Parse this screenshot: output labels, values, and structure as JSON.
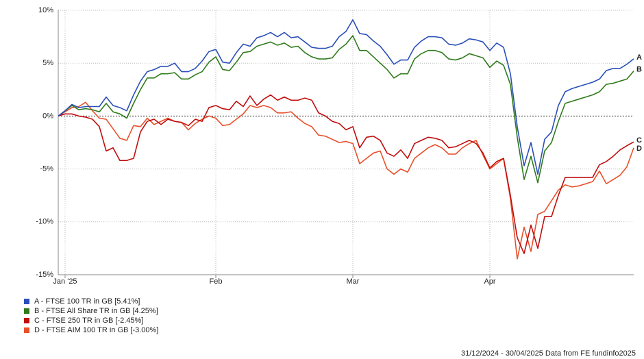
{
  "chart_data": {
    "type": "line",
    "categories": [
      null,
      "Jan '25",
      null,
      null,
      null,
      null,
      null,
      null,
      null,
      null,
      null,
      null,
      null,
      null,
      null,
      null,
      null,
      null,
      null,
      null,
      null,
      null,
      null,
      "Feb",
      null,
      null,
      null,
      null,
      null,
      null,
      null,
      null,
      null,
      null,
      null,
      null,
      null,
      null,
      null,
      null,
      null,
      null,
      null,
      "Mar",
      null,
      null,
      null,
      null,
      null,
      null,
      null,
      null,
      null,
      null,
      null,
      null,
      null,
      null,
      null,
      null,
      null,
      null,
      null,
      "Apr",
      null,
      null,
      null,
      null,
      null,
      null,
      null,
      null,
      null,
      null,
      null,
      null,
      null,
      null,
      null,
      null,
      null,
      null,
      null,
      null,
      null
    ],
    "series": [
      {
        "name": "A - FTSE 100 TR in GB [5.41%]",
        "key": "A",
        "color": "#2a4fb8",
        "values": [
          0,
          0.5,
          1.1,
          0.8,
          0.9,
          0.9,
          0.9,
          1.8,
          1.0,
          0.8,
          0.5,
          2.0,
          3.3,
          4.2,
          4.4,
          4.7,
          4.7,
          5.0,
          4.2,
          4.2,
          4.5,
          5.2,
          6.1,
          6.3,
          5.1,
          5.0,
          6.0,
          6.8,
          6.6,
          7.4,
          7.6,
          7.9,
          7.5,
          7.9,
          7.4,
          7.5,
          7.0,
          6.5,
          6.4,
          6.4,
          6.6,
          7.5,
          8.0,
          9.1,
          7.8,
          7.7,
          7.1,
          6.6,
          5.8,
          4.9,
          5.3,
          5.3,
          6.5,
          7.1,
          7.5,
          7.5,
          7.4,
          6.8,
          6.7,
          6.9,
          7.3,
          7.2,
          7.0,
          6.2,
          6.9,
          6.5,
          4.0,
          -1.0,
          -4.7,
          -2.5,
          -5.5,
          -2.2,
          -1.5,
          1.0,
          2.3,
          2.6,
          2.8,
          3.0,
          3.2,
          3.5,
          4.3,
          4.5,
          4.5,
          4.9,
          5.41
        ]
      },
      {
        "name": "B - FTSE All Share TR in GB [4.25%]",
        "key": "B",
        "color": "#2f7a1c",
        "values": [
          0,
          0.5,
          1.0,
          0.6,
          0.7,
          0.6,
          0.4,
          1.2,
          0.4,
          0.2,
          -0.2,
          1.2,
          2.5,
          3.6,
          3.6,
          4.0,
          4.0,
          4.1,
          3.5,
          3.5,
          3.9,
          4.2,
          5.1,
          5.6,
          4.4,
          4.3,
          5.1,
          6.0,
          6.1,
          6.6,
          6.8,
          7.0,
          6.7,
          6.9,
          6.5,
          6.6,
          6.0,
          5.6,
          5.4,
          5.4,
          5.5,
          6.3,
          6.8,
          7.6,
          6.2,
          6.2,
          5.6,
          5.0,
          4.4,
          3.6,
          4.0,
          4.0,
          5.4,
          5.9,
          6.2,
          6.2,
          6.0,
          5.4,
          5.3,
          5.5,
          5.9,
          5.7,
          5.5,
          4.6,
          5.2,
          4.8,
          3.0,
          -2.0,
          -6.0,
          -3.8,
          -6.3,
          -3.3,
          -2.5,
          -0.5,
          1.2,
          1.4,
          1.6,
          1.8,
          2.0,
          2.3,
          3.0,
          3.1,
          3.3,
          3.5,
          4.25
        ]
      },
      {
        "name": "C - FTSE 250 TR in GB [-2.45%]",
        "key": "C",
        "color": "#c00d0d",
        "values": [
          0,
          0.2,
          0.2,
          0,
          -0.1,
          -0.3,
          -1.0,
          -3.3,
          -3.0,
          -4.2,
          -4.2,
          -4.0,
          -1.5,
          -0.5,
          -0.3,
          -0.8,
          -0.3,
          -0.5,
          -0.6,
          -0.9,
          -0.3,
          -0.5,
          0.8,
          1.0,
          0.7,
          0.6,
          1.4,
          0.9,
          1.9,
          1.0,
          1.6,
          2.0,
          1.5,
          1.8,
          1.5,
          1.5,
          1.7,
          1.5,
          0.3,
          0.0,
          -0.5,
          -0.7,
          -1.3,
          -1.0,
          -3.0,
          -2.0,
          -1.9,
          -2.3,
          -3.5,
          -3.8,
          -3.2,
          -4.0,
          -2.6,
          -2.3,
          -2.0,
          -2.1,
          -2.3,
          -3.0,
          -2.9,
          -2.6,
          -2.3,
          -2.6,
          -3.5,
          -4.9,
          -4.3,
          -4.0,
          -7.5,
          -11.5,
          -13.0,
          -10.3,
          -12.5,
          -9.5,
          -9.5,
          -7.5,
          -5.8,
          -5.8,
          -5.8,
          -5.8,
          -5.8,
          -4.6,
          -4.3,
          -3.8,
          -3.2,
          -2.8,
          -2.45
        ]
      },
      {
        "name": "D - FTSE AIM 100 TR in GB [-3.00%]",
        "key": "D",
        "color": "#e8502a",
        "values": [
          0,
          0.4,
          0.8,
          0.9,
          1.3,
          0.5,
          -0.2,
          -0.3,
          -1.2,
          -2.1,
          -2.3,
          -0.9,
          -1.0,
          -0.2,
          -0.8,
          -0.5,
          -0.2,
          -0.5,
          -0.6,
          -1.3,
          -0.7,
          -0.3,
          0.0,
          -0.2,
          -0.9,
          -0.8,
          -0.3,
          0.2,
          1.0,
          0.8,
          1.0,
          0.8,
          0.3,
          0.3,
          0.4,
          -0.2,
          -0.7,
          -1.0,
          -1.8,
          -1.9,
          -2.2,
          -2.5,
          -2.4,
          -2.6,
          -4.5,
          -4.0,
          -3.5,
          -3.3,
          -5.0,
          -5.5,
          -5.0,
          -5.3,
          -4.0,
          -3.5,
          -3.0,
          -2.7,
          -3.0,
          -3.6,
          -3.6,
          -3.0,
          -2.6,
          -2.3,
          -3.7,
          -5.0,
          -4.5,
          -4.0,
          -7.8,
          -13.5,
          -10.5,
          -12.8,
          -9.3,
          -9.0,
          -8.0,
          -7.0,
          -6.5,
          -6.7,
          -6.6,
          -6.4,
          -6.2,
          -5.2,
          -6.4,
          -6.0,
          -5.6,
          -4.8,
          -3.0
        ]
      }
    ],
    "ylim": [
      -15,
      10
    ],
    "yticks": [
      {
        "value": 10,
        "label": "10%"
      },
      {
        "value": 5,
        "label": "5%"
      },
      {
        "value": 0,
        "label": "0%"
      },
      {
        "value": -5,
        "label": "-5%"
      },
      {
        "value": -10,
        "label": "-10%"
      },
      {
        "value": -15,
        "label": "-15%"
      }
    ],
    "grid": true,
    "legend": "bottom-left",
    "footnote": "31/12/2024 - 30/04/2025 Data from FE fundinfo2025"
  }
}
